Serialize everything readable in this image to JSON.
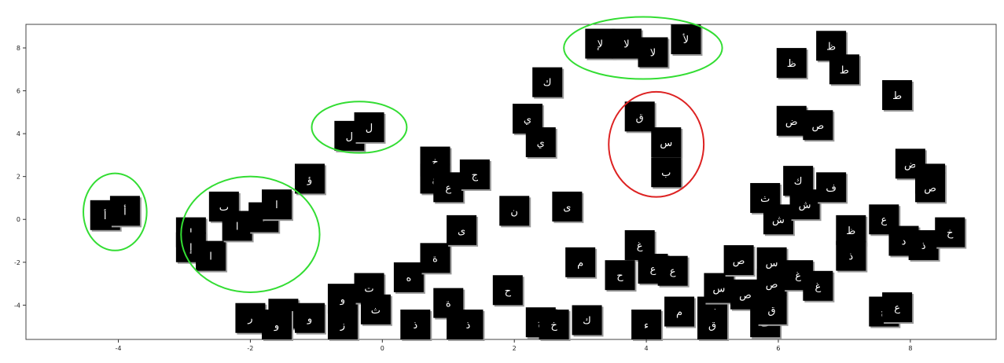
{
  "chart_data": {
    "type": "scatter",
    "title": "",
    "xlabel": "",
    "ylabel": "",
    "xlim": [
      -5.4,
      9.3
    ],
    "ylim": [
      -5.6,
      9.1
    ],
    "grid": false,
    "legend": "none",
    "x_ticks": [
      "-4",
      "-2",
      "0",
      "2",
      "4",
      "6",
      "8"
    ],
    "y_ticks": [
      "-4",
      "-2",
      "0",
      "2",
      "4",
      "6",
      "8"
    ],
    "colors": {
      "marker": "#000000",
      "marker_text": "#ffffff",
      "ring_green": "#33dd33",
      "ring_red": "#dd2222",
      "axis": "#333333"
    },
    "points": [
      {
        "x": -4.2,
        "y": 0.2,
        "glyph": "أ"
      },
      {
        "x": -3.9,
        "y": 0.4,
        "glyph": "أ"
      },
      {
        "x": -2.9,
        "y": -0.6,
        "glyph": "إ"
      },
      {
        "x": -2.9,
        "y": -1.3,
        "glyph": "إ"
      },
      {
        "x": -2.6,
        "y": -1.7,
        "glyph": "ا"
      },
      {
        "x": -2.4,
        "y": 0.6,
        "glyph": "ب"
      },
      {
        "x": -2.2,
        "y": -0.3,
        "glyph": "ا"
      },
      {
        "x": -1.8,
        "y": 0.1,
        "glyph": "ا"
      },
      {
        "x": -1.6,
        "y": 0.7,
        "glyph": "ا"
      },
      {
        "x": -1.1,
        "y": 1.9,
        "glyph": "ؤ"
      },
      {
        "x": -0.5,
        "y": 3.9,
        "glyph": "ل"
      },
      {
        "x": -0.2,
        "y": 4.3,
        "glyph": "ل"
      },
      {
        "x": -2.0,
        "y": -4.6,
        "glyph": "ر"
      },
      {
        "x": -1.5,
        "y": -4.4,
        "glyph": "ق"
      },
      {
        "x": -1.6,
        "y": -5.0,
        "glyph": "و"
      },
      {
        "x": -1.1,
        "y": -4.6,
        "glyph": "و"
      },
      {
        "x": -0.6,
        "y": -3.7,
        "glyph": "و"
      },
      {
        "x": -0.6,
        "y": -4.9,
        "glyph": "ز"
      },
      {
        "x": -0.2,
        "y": -3.2,
        "glyph": "ت"
      },
      {
        "x": -0.1,
        "y": -4.2,
        "glyph": "ث"
      },
      {
        "x": 0.4,
        "y": -2.7,
        "glyph": "ه"
      },
      {
        "x": 0.8,
        "y": -1.8,
        "glyph": "ة"
      },
      {
        "x": 0.5,
        "y": -5.8,
        "glyph": "ذ"
      },
      {
        "x": 0.8,
        "y": 2.7,
        "glyph": "خ"
      },
      {
        "x": 0.8,
        "y": 1.9,
        "glyph": "غ"
      },
      {
        "x": 1.0,
        "y": 1.5,
        "glyph": "ع"
      },
      {
        "x": 1.4,
        "y": 2.1,
        "glyph": "ج"
      },
      {
        "x": 1.2,
        "y": -0.5,
        "glyph": "ى"
      },
      {
        "x": 1.0,
        "y": -3.9,
        "glyph": "ة"
      },
      {
        "x": 1.2,
        "y": -5.0,
        "glyph": "د"
      },
      {
        "x": 1.3,
        "y": -5.6,
        "glyph": "ذ"
      },
      {
        "x": 2.0,
        "y": 0.4,
        "glyph": "ن"
      },
      {
        "x": 1.9,
        "y": -3.3,
        "glyph": "ح"
      },
      {
        "x": 2.2,
        "y": 4.7,
        "glyph": "ي"
      },
      {
        "x": 2.4,
        "y": 3.6,
        "glyph": "ي"
      },
      {
        "x": 2.5,
        "y": 6.4,
        "glyph": "ك"
      },
      {
        "x": 2.4,
        "y": -4.8,
        "glyph": "ج"
      },
      {
        "x": 2.6,
        "y": -5.3,
        "glyph": "خ"
      },
      {
        "x": 2.8,
        "y": 0.6,
        "glyph": "ى"
      },
      {
        "x": 3.0,
        "y": -2.0,
        "glyph": "م"
      },
      {
        "x": 3.1,
        "y": -4.7,
        "glyph": "ك"
      },
      {
        "x": 3.3,
        "y": 8.2,
        "glyph": "لإ"
      },
      {
        "x": 3.7,
        "y": 8.2,
        "glyph": "لا"
      },
      {
        "x": 4.1,
        "y": 7.8,
        "glyph": "لا"
      },
      {
        "x": 4.6,
        "y": 8.5,
        "glyph": "لأ"
      },
      {
        "x": 3.9,
        "y": 4.8,
        "glyph": "ق"
      },
      {
        "x": 4.3,
        "y": 3.6,
        "glyph": "س"
      },
      {
        "x": 4.3,
        "y": 2.2,
        "glyph": "ب"
      },
      {
        "x": 3.9,
        "y": -1.2,
        "glyph": "غ"
      },
      {
        "x": 3.6,
        "y": -2.6,
        "glyph": "ح"
      },
      {
        "x": 4.1,
        "y": -2.3,
        "glyph": "ع"
      },
      {
        "x": 4.4,
        "y": -2.4,
        "glyph": "ع"
      },
      {
        "x": 4.0,
        "y": -5.4,
        "glyph": "ء"
      },
      {
        "x": 4.5,
        "y": -4.3,
        "glyph": "م"
      },
      {
        "x": 5.0,
        "y": -4.3,
        "glyph": "ف"
      },
      {
        "x": 5.0,
        "y": -5.0,
        "glyph": "ق"
      },
      {
        "x": 5.1,
        "y": -3.2,
        "glyph": "س"
      },
      {
        "x": 5.4,
        "y": -1.9,
        "glyph": "ص"
      },
      {
        "x": 5.5,
        "y": -3.5,
        "glyph": "ص"
      },
      {
        "x": 5.8,
        "y": -4.8,
        "glyph": "ف"
      },
      {
        "x": 5.9,
        "y": -2.0,
        "glyph": "س"
      },
      {
        "x": 5.9,
        "y": -3.0,
        "glyph": "ص"
      },
      {
        "x": 5.9,
        "y": -4.2,
        "glyph": "ق"
      },
      {
        "x": 6.3,
        "y": -2.6,
        "glyph": "غ"
      },
      {
        "x": 6.6,
        "y": -3.1,
        "glyph": "غ"
      },
      {
        "x": 5.8,
        "y": 1.0,
        "glyph": "ث"
      },
      {
        "x": 6.0,
        "y": 0.0,
        "glyph": "ش"
      },
      {
        "x": 6.3,
        "y": 1.8,
        "glyph": "ك"
      },
      {
        "x": 6.4,
        "y": 0.7,
        "glyph": "ش"
      },
      {
        "x": 6.8,
        "y": 1.5,
        "glyph": "ف"
      },
      {
        "x": 6.2,
        "y": 4.6,
        "glyph": "ض"
      },
      {
        "x": 6.6,
        "y": 4.4,
        "glyph": "ص"
      },
      {
        "x": 6.2,
        "y": 7.3,
        "glyph": "ظ"
      },
      {
        "x": 6.8,
        "y": 8.1,
        "glyph": "ظ"
      },
      {
        "x": 7.0,
        "y": 7.0,
        "glyph": "ط"
      },
      {
        "x": 7.8,
        "y": 5.8,
        "glyph": "ط"
      },
      {
        "x": 7.1,
        "y": -0.5,
        "glyph": "ظ"
      },
      {
        "x": 7.1,
        "y": -1.7,
        "glyph": "ذ"
      },
      {
        "x": 7.6,
        "y": 0.0,
        "glyph": "ع"
      },
      {
        "x": 7.9,
        "y": -1.0,
        "glyph": "د"
      },
      {
        "x": 8.2,
        "y": -1.2,
        "glyph": "ذ"
      },
      {
        "x": 8.6,
        "y": -0.6,
        "glyph": "خ"
      },
      {
        "x": 8.0,
        "y": 2.6,
        "glyph": "ض"
      },
      {
        "x": 8.3,
        "y": 1.9,
        "glyph": "ض"
      },
      {
        "x": 8.3,
        "y": 1.5,
        "glyph": "ص"
      },
      {
        "x": 7.6,
        "y": -4.3,
        "glyph": "ح"
      },
      {
        "x": 7.8,
        "y": -4.1,
        "glyph": "ع"
      }
    ],
    "rings": [
      {
        "color": "green",
        "cx": -4.05,
        "cy": 0.35,
        "rx": 0.48,
        "ry": 1.8
      },
      {
        "color": "green",
        "cx": -2.0,
        "cy": -0.7,
        "rx": 1.05,
        "ry": 2.7
      },
      {
        "color": "green",
        "cx": -0.35,
        "cy": 4.3,
        "rx": 0.72,
        "ry": 1.2
      },
      {
        "color": "green",
        "cx": 3.95,
        "cy": 8.0,
        "rx": 1.2,
        "ry": 1.45
      },
      {
        "color": "red",
        "cx": 4.15,
        "cy": 3.5,
        "rx": 0.72,
        "ry": 2.45
      }
    ]
  }
}
